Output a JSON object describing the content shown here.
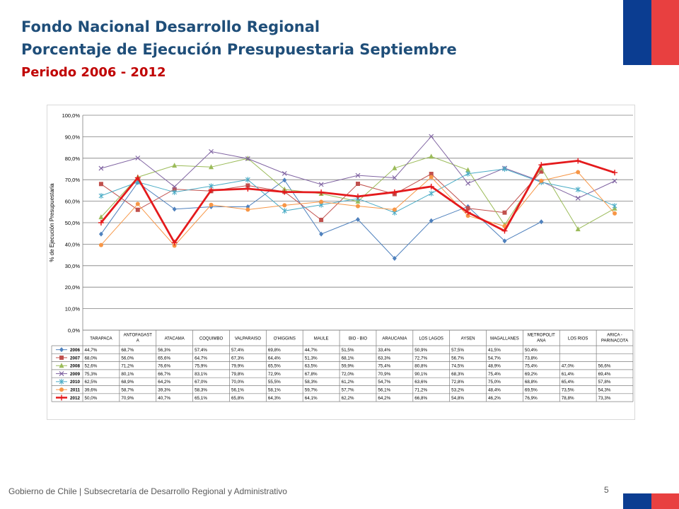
{
  "header": {
    "title": "Fondo Nacional Desarrollo Regional",
    "subtitle": "Porcentaje de Ejecución Presupuestaria Septiembre",
    "period": "Periodo 2006 - 2012"
  },
  "footer": {
    "text": "Gobierno de Chile | Subsecretaría de Desarrollo Regional y Administrativo",
    "page_number": "5"
  },
  "colors": {
    "flag_blue": "#0b3d91",
    "flag_red": "#e84040",
    "title_blue": "#1f4e79",
    "period_red": "#c00000"
  },
  "chart_data": {
    "type": "line",
    "ylabel": "% de Ejecución Presupuestaria",
    "ylim": [
      0,
      100
    ],
    "y_ticks": [
      "0,0%",
      "10,0%",
      "20,0%",
      "30,0%",
      "40,0%",
      "50,0%",
      "60,0%",
      "70,0%",
      "80,0%",
      "90,0%",
      "100,0%"
    ],
    "grid": true,
    "legend": "data table below the plot",
    "categories": [
      "TARAPACA",
      "ANTOFAGAST A",
      "ATACAMA",
      "COQUIMBO",
      "VALPARAISO",
      "O'HIGGINS",
      "MAULE",
      "BIO - BIO",
      "ARAUCANIA",
      "LOS LAGOS",
      "AYSEN",
      "MAGALLANES",
      "METROPOLIT ANA",
      "LOS RIOS",
      "ARICA - PARINACOTA"
    ],
    "series": [
      {
        "name": "2006",
        "color": "#4f81bd",
        "marker": "diamond",
        "values": [
          44.7,
          68.7,
          56.3,
          57.4,
          57.4,
          69.8,
          44.7,
          51.5,
          33.4,
          50.9,
          57.5,
          41.5,
          50.4,
          null,
          null
        ],
        "labels": [
          "44,7%",
          "68,7%",
          "56,3%",
          "57,4%",
          "57,4%",
          "69,8%",
          "44,7%",
          "51,5%",
          "33,4%",
          "50,9%",
          "57,5%",
          "41,5%",
          "50,4%",
          "",
          ""
        ]
      },
      {
        "name": "2007",
        "color": "#c0504d",
        "marker": "square",
        "values": [
          68.0,
          56.0,
          65.6,
          64.7,
          67.3,
          64.4,
          51.3,
          68.1,
          63.3,
          72.7,
          56.7,
          54.7,
          73.8,
          null,
          null
        ],
        "labels": [
          "68,0%",
          "56,0%",
          "65,6%",
          "64,7%",
          "67,3%",
          "64,4%",
          "51,3%",
          "68,1%",
          "63,3%",
          "72,7%",
          "56,7%",
          "54,7%",
          "73,8%",
          "",
          ""
        ]
      },
      {
        "name": "2008",
        "color": "#9bbb59",
        "marker": "triangle",
        "values": [
          52.6,
          71.2,
          76.6,
          75.9,
          79.9,
          65.5,
          63.5,
          59.9,
          75.4,
          80.8,
          74.5,
          48.9,
          75.4,
          47.0,
          56.6
        ],
        "labels": [
          "52,6%",
          "71,2%",
          "76,6%",
          "75,9%",
          "79,9%",
          "65,5%",
          "63,5%",
          "59,9%",
          "75,4%",
          "80,8%",
          "74,5%",
          "48,9%",
          "75,4%",
          "47,0%",
          "56,6%"
        ]
      },
      {
        "name": "2009",
        "color": "#8064a2",
        "marker": "x",
        "values": [
          75.3,
          80.1,
          66.7,
          83.1,
          79.8,
          72.9,
          67.8,
          72.0,
          70.9,
          90.1,
          68.3,
          75.4,
          69.2,
          61.4,
          69.4
        ],
        "labels": [
          "75,3%",
          "80,1%",
          "66,7%",
          "83,1%",
          "79,8%",
          "72,9%",
          "67,8%",
          "72,0%",
          "70,9%",
          "90,1%",
          "68,3%",
          "75,4%",
          "69,2%",
          "61,4%",
          "69,4%"
        ]
      },
      {
        "name": "2010",
        "color": "#4bacc6",
        "marker": "star",
        "values": [
          62.5,
          68.9,
          64.2,
          67.0,
          70.0,
          55.5,
          58.3,
          61.2,
          54.7,
          63.6,
          72.8,
          75.0,
          68.8,
          65.4,
          57.8
        ],
        "labels": [
          "62,5%",
          "68,9%",
          "64,2%",
          "67,0%",
          "70,0%",
          "55,5%",
          "58,3%",
          "61,2%",
          "54,7%",
          "63,6%",
          "72,8%",
          "75,0%",
          "68,8%",
          "65,4%",
          "57,8%"
        ]
      },
      {
        "name": "2011",
        "color": "#f79646",
        "marker": "circle",
        "values": [
          39.6,
          58.7,
          39.3,
          58.3,
          56.1,
          58.1,
          59.7,
          57.7,
          56.1,
          71.2,
          53.2,
          48.4,
          69.5,
          73.5,
          54.3
        ],
        "labels": [
          "39,6%",
          "58,7%",
          "39,3%",
          "58,3%",
          "56,1%",
          "58,1%",
          "59,7%",
          "57,7%",
          "56,1%",
          "71,2%",
          "53,2%",
          "48,4%",
          "69,5%",
          "73,5%",
          "54,3%"
        ]
      },
      {
        "name": "2012",
        "color": "#e41a1c",
        "marker": "plus",
        "bold": true,
        "values": [
          50.0,
          70.9,
          40.7,
          65.1,
          65.8,
          64.3,
          64.1,
          62.2,
          64.2,
          66.8,
          54.8,
          46.2,
          76.9,
          78.8,
          73.3
        ],
        "labels": [
          "50,0%",
          "70,9%",
          "40,7%",
          "65,1%",
          "65,8%",
          "64,3%",
          "64,1%",
          "62,2%",
          "64,2%",
          "66,8%",
          "54,8%",
          "46,2%",
          "76,9%",
          "78,8%",
          "73,3%"
        ]
      }
    ]
  }
}
